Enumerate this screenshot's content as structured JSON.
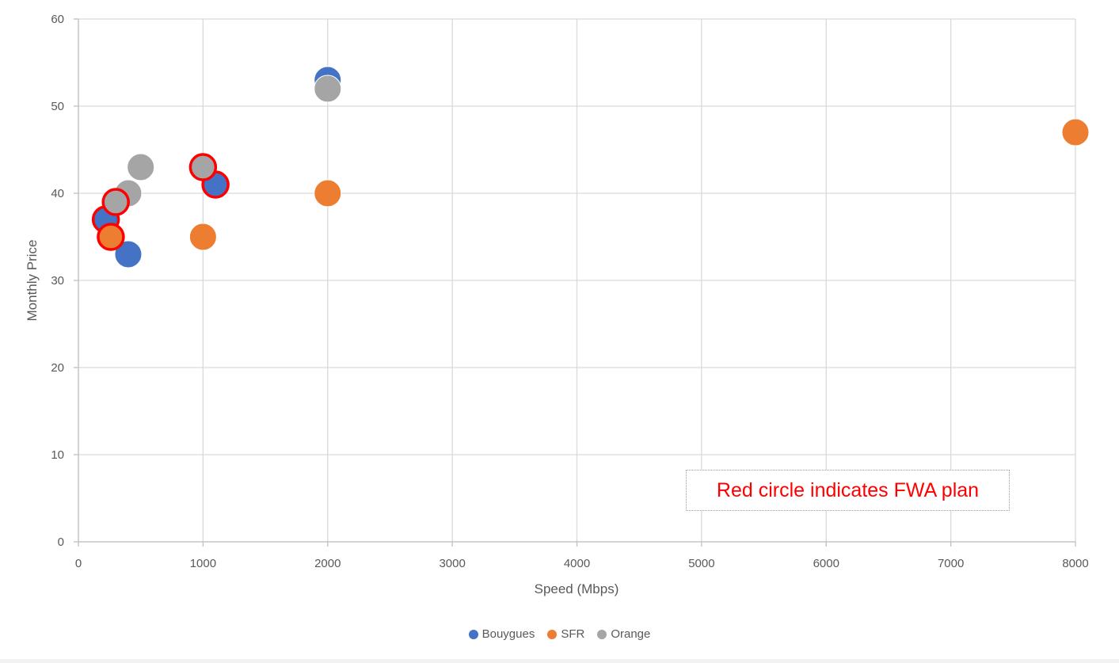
{
  "chart_data": {
    "type": "scatter",
    "xlabel": "Speed (Mbps)",
    "ylabel": "Monthly Price",
    "xlim": [
      0,
      8000
    ],
    "ylim": [
      0,
      60
    ],
    "xticks": [
      0,
      1000,
      2000,
      3000,
      4000,
      5000,
      6000,
      7000,
      8000
    ],
    "yticks": [
      0,
      10,
      20,
      30,
      40,
      50,
      60
    ],
    "grid": true,
    "legend_position": "bottom",
    "annotation": "Red circle indicates FWA plan",
    "highlight_color": "#ff0000",
    "series": [
      {
        "name": "Bouygues",
        "color": "#4472c4",
        "points": [
          {
            "x": 2000,
            "y": 53,
            "fwa": false
          },
          {
            "x": 400,
            "y": 33,
            "fwa": false
          },
          {
            "x": 220,
            "y": 37,
            "fwa": true
          },
          {
            "x": 1100,
            "y": 41,
            "fwa": true
          }
        ]
      },
      {
        "name": "SFR",
        "color": "#ed7d31",
        "points": [
          {
            "x": 8000,
            "y": 47,
            "fwa": false
          },
          {
            "x": 2000,
            "y": 40,
            "fwa": false
          },
          {
            "x": 1000,
            "y": 35,
            "fwa": false
          },
          {
            "x": 260,
            "y": 35,
            "fwa": true
          }
        ]
      },
      {
        "name": "Orange",
        "color": "#a5a5a5",
        "points": [
          {
            "x": 2000,
            "y": 52,
            "fwa": false
          },
          {
            "x": 500,
            "y": 43,
            "fwa": false
          },
          {
            "x": 400,
            "y": 40,
            "fwa": false
          },
          {
            "x": 300,
            "y": 39,
            "fwa": true
          },
          {
            "x": 1000,
            "y": 43,
            "fwa": true
          }
        ]
      }
    ]
  }
}
